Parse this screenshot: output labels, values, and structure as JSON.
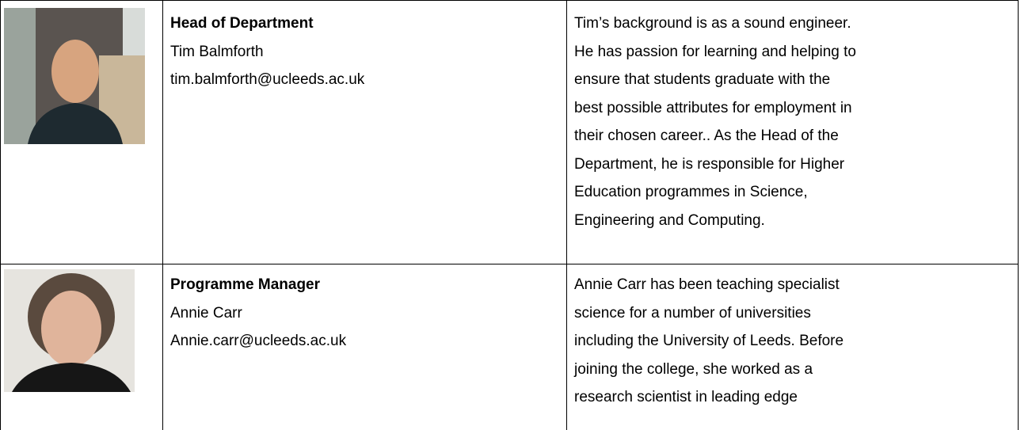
{
  "table": {
    "rows": [
      {
        "role": "Head of Department",
        "name": "Tim Balmforth",
        "email": "tim.balmforth@ucleeds.ac.uk",
        "bio": [
          "Tim’s background is as a sound engineer.",
          "He has passion for learning and helping to",
          "ensure that students graduate with the",
          "best possible attributes for employment in",
          "their chosen career.. As the Head of the",
          "Department, he is responsible for Higher",
          "Education programmes in Science,",
          "Engineering and Computing."
        ]
      },
      {
        "role": "Programme Manager",
        "name": "Annie Carr",
        "email": "Annie.carr@ucleeds.ac.uk",
        "bio": [
          "Annie Carr has been teaching specialist",
          "science for a number of universities",
          "including the University of Leeds. Before",
          "joining the college, she worked as a",
          "research scientist in leading edge"
        ]
      }
    ]
  }
}
